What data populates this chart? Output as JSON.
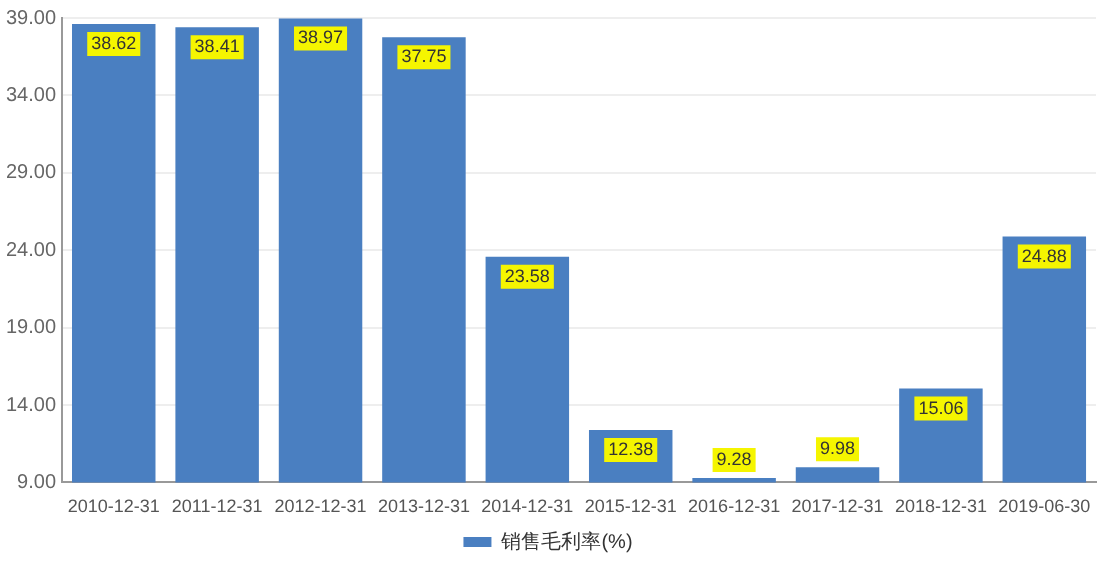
{
  "chart_data": {
    "type": "bar",
    "categories": [
      "2010-12-31",
      "2011-12-31",
      "2012-12-31",
      "2013-12-31",
      "2014-12-31",
      "2015-12-31",
      "2016-12-31",
      "2017-12-31",
      "2018-12-31",
      "2019-06-30"
    ],
    "series": [
      {
        "name": "销售毛利率(%)",
        "color": "#4a7fc1",
        "values": [
          38.62,
          38.41,
          38.97,
          37.75,
          23.58,
          12.38,
          9.28,
          9.98,
          15.06,
          24.88
        ]
      }
    ],
    "ylim": [
      9,
      39
    ],
    "yticks": [
      {
        "value": 9,
        "label": "9.00"
      },
      {
        "value": 14,
        "label": "14.00"
      },
      {
        "value": 19,
        "label": "19.00"
      },
      {
        "value": 24,
        "label": "24.00"
      },
      {
        "value": 29,
        "label": "29.00"
      },
      {
        "value": 34,
        "label": "34.00"
      },
      {
        "value": 39,
        "label": "39.00"
      }
    ],
    "grid": "y",
    "legend": "bottom",
    "data_labels": true
  }
}
